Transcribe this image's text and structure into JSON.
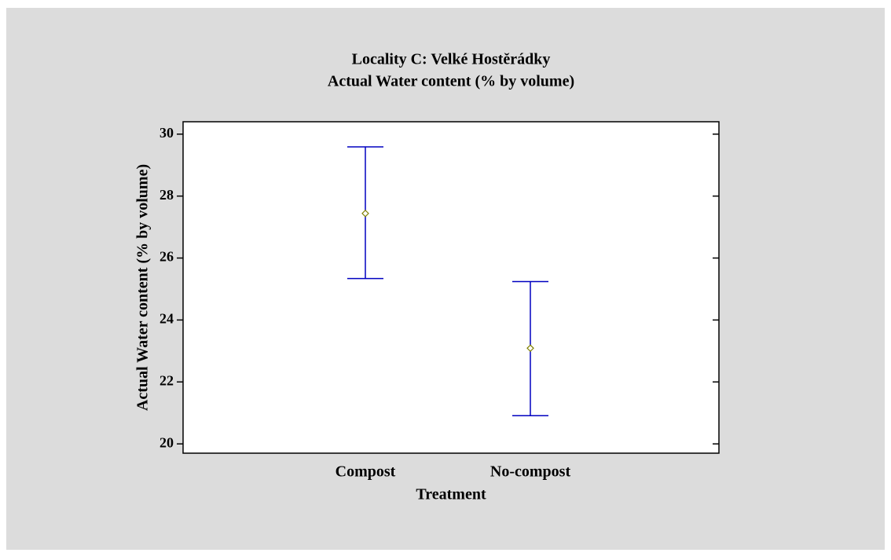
{
  "chart_data": {
    "type": "interval",
    "title": "Locality C: Velké Hostěrádky",
    "subtitle": "Actual Water content (% by volume)",
    "x_label": "Treatment",
    "y_label": "Actual Water content (% by volume)",
    "categories": [
      "Compost",
      "No-compost"
    ],
    "values": [
      27.44,
      23.09
    ],
    "lower": [
      25.34,
      20.91
    ],
    "upper": [
      29.59,
      25.24
    ],
    "color": "#0000c0",
    "marker_color": "#808000",
    "ylim": [
      19.7,
      30.4
    ],
    "yticks": [
      20,
      22,
      24,
      26,
      28,
      30
    ]
  }
}
